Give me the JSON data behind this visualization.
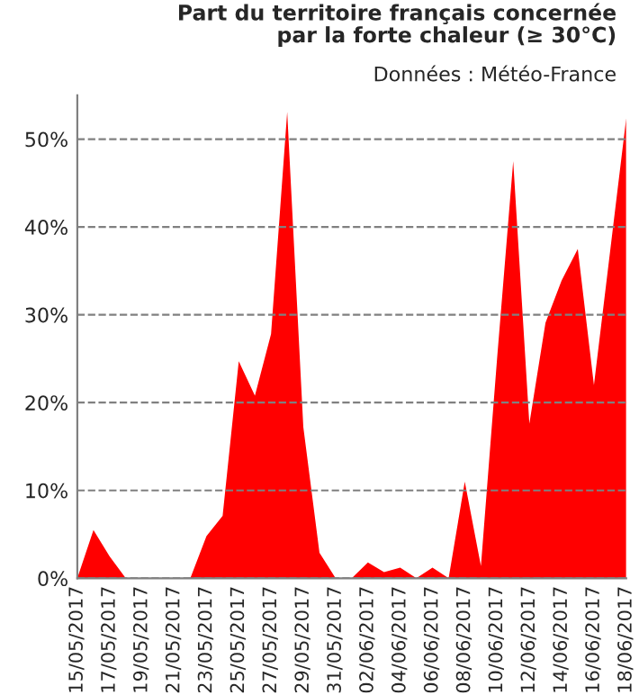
{
  "chart_data": {
    "type": "area",
    "title": "Part du territoire français concernée\npar la forte chaleur (≥ 30°C)",
    "annotations": [
      "Données : Météo-France"
    ],
    "categories": [
      "15/05/2017",
      null,
      "17/05/2017",
      null,
      "19/05/2017",
      null,
      "21/05/2017",
      null,
      "23/05/2017",
      null,
      "25/05/2017",
      null,
      "27/05/2017",
      null,
      "29/05/2017",
      null,
      "31/05/2017",
      null,
      "02/06/2017",
      null,
      "04/06/2017",
      null,
      "06/06/2017",
      null,
      "08/06/2017",
      null,
      "10/06/2017",
      null,
      "12/06/2017",
      null,
      "14/06/2017",
      null,
      "16/06/2017",
      null,
      "18/06/2017"
    ],
    "series": [
      {
        "color": "#ff0000",
        "values": [
          0,
          5.5,
          2.5,
          0,
          0,
          0,
          0,
          0,
          4.8,
          7.1,
          24.7,
          20.8,
          27.8,
          53.1,
          17.2,
          2.9,
          0,
          0,
          1.8,
          0.7,
          1.2,
          0,
          1.2,
          0,
          11.0,
          1.4,
          25,
          47.5,
          17.6,
          29.1,
          33.9,
          37.5,
          22.0,
          37.2,
          52.4
        ]
      }
    ],
    "ylim": [
      0,
      55
    ],
    "yticks": [
      {
        "value": 0,
        "label": "0%"
      },
      {
        "value": 10,
        "label": "10%"
      },
      {
        "value": 20,
        "label": "20%"
      },
      {
        "value": 30,
        "label": "30%"
      },
      {
        "value": 40,
        "label": "40%"
      },
      {
        "value": 50,
        "label": "50%"
      }
    ],
    "grid": "y",
    "legend": false
  }
}
